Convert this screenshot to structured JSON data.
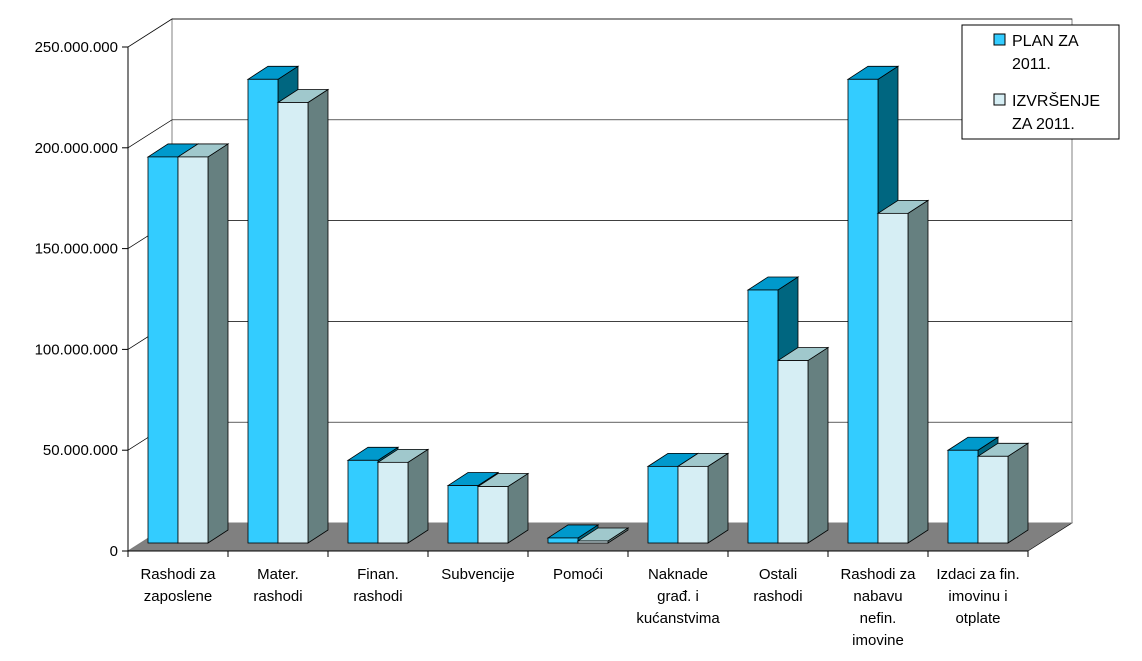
{
  "chart_data": {
    "type": "bar",
    "title": "",
    "xlabel": "",
    "ylabel": "",
    "ylim": [
      0,
      250000000
    ],
    "yticks": [
      0,
      50000000,
      100000000,
      150000000,
      200000000,
      250000000
    ],
    "ytick_labels": [
      "0",
      "50.000.000",
      "100.000.000",
      "150.000.000",
      "200.000.000",
      "250.000.000"
    ],
    "grid": true,
    "legend_position": "top-right",
    "categories": [
      [
        "Rashodi za",
        "zaposlene"
      ],
      [
        "Mater.",
        "rashodi"
      ],
      [
        "Finan.",
        "rashodi"
      ],
      [
        "Subvencije"
      ],
      [
        "Pomoći"
      ],
      [
        "Naknade",
        "građ. i",
        "kućanstvima"
      ],
      [
        "Ostali",
        "rashodi"
      ],
      [
        "Rashodi za",
        "nabavu",
        "nefin.",
        "imovine"
      ],
      [
        "Izdaci za fin.",
        "imovinu i",
        "otplate"
      ]
    ],
    "series": [
      {
        "name": [
          "PLAN ZA",
          "2011."
        ],
        "color": "#33CCFF",
        "top_color": "#0099CC",
        "side_color": "#006680",
        "values": [
          192500000,
          231000000,
          42000000,
          29500000,
          3500000,
          39000000,
          126500000,
          231000000,
          47000000
        ]
      },
      {
        "name": [
          "IZVRŠENJE",
          "ZA 2011."
        ],
        "color": "#D6EEF4",
        "top_color": "#A0C8CC",
        "side_color": "#668080",
        "values": [
          192500000,
          219500000,
          41000000,
          29000000,
          2000000,
          39000000,
          91500000,
          164500000,
          44000000
        ]
      }
    ],
    "wall_color": "#FFFFFF",
    "floor_color": "#808080"
  }
}
